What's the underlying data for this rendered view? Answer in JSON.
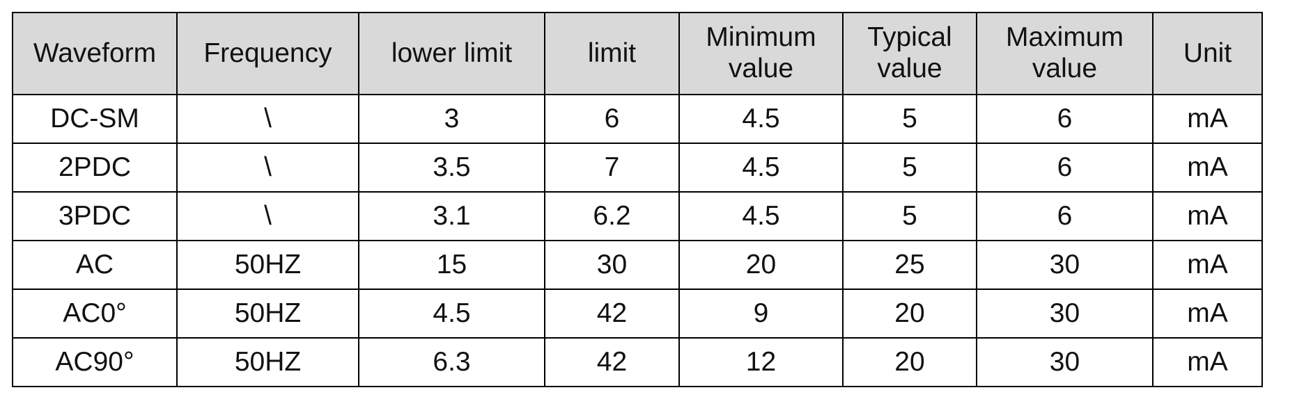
{
  "table": {
    "header": [
      "Waveform",
      "Frequency",
      "lower limit",
      "limit",
      "Minimum value",
      "Typical value",
      "Maximum value",
      "Unit"
    ],
    "rows": [
      [
        "DC-SM",
        "\\",
        3,
        6,
        4.5,
        5,
        6,
        "mA"
      ],
      [
        "2PDC",
        "\\",
        3.5,
        7,
        4.5,
        5,
        6,
        "mA"
      ],
      [
        "3PDC",
        "\\",
        3.1,
        6.2,
        4.5,
        5,
        6,
        "mA"
      ],
      [
        "AC",
        "50HZ",
        15,
        30,
        20,
        25,
        30,
        "mA"
      ],
      [
        "AC0°",
        "50HZ",
        4.5,
        42,
        9,
        20,
        30,
        "mA"
      ],
      [
        "AC90°",
        "50HZ",
        6.3,
        42,
        12,
        20,
        30,
        "mA"
      ]
    ]
  }
}
